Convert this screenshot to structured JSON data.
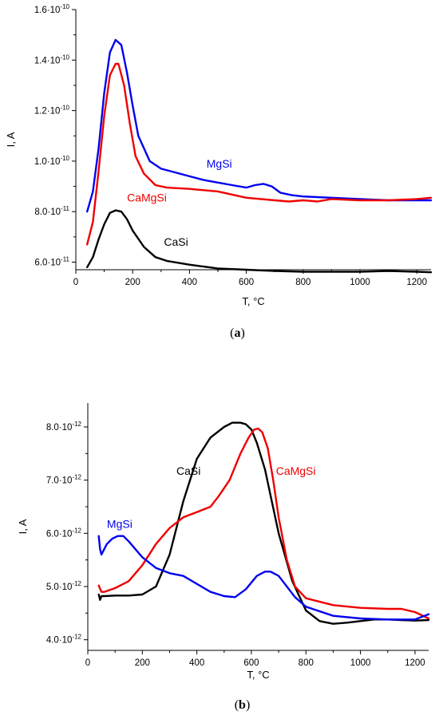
{
  "chart_data": [
    {
      "type": "line",
      "panel_label": "(a)",
      "panel_letter": "a",
      "xlabel": "T, °C",
      "ylabel": "I, A",
      "xlim": [
        0,
        1250
      ],
      "ylim": [
        5.7e-11,
        1.6e-10
      ],
      "x_ticks": [
        0,
        200,
        400,
        600,
        800,
        1000,
        1200
      ],
      "x_tick_labels": [
        "0",
        "200",
        "400",
        "600",
        "800",
        "1000",
        "1200"
      ],
      "y_ticks": [
        6e-11,
        8e-11,
        1e-10,
        1.2e-10,
        1.4e-10,
        1.6e-10
      ],
      "y_tick_labels": [
        "6.0·10-11",
        "8.0·10-11",
        "1.0·10-10",
        "1.2·10-10",
        "1.4·10-10",
        "1.6·10-10"
      ],
      "grid": false,
      "series": [
        {
          "name": "MgSi",
          "color": "#0000ee",
          "x": [
            40,
            60,
            80,
            100,
            120,
            140,
            160,
            180,
            200,
            220,
            260,
            300,
            350,
            400,
            450,
            500,
            550,
            600,
            630,
            660,
            690,
            720,
            760,
            800,
            900,
            1000,
            1100,
            1200,
            1250
          ],
          "y": [
            8e-11,
            8.8e-11,
            1.05e-10,
            1.27e-10,
            1.43e-10,
            1.48e-10,
            1.46e-10,
            1.35e-10,
            1.22e-10,
            1.1e-10,
            1e-10,
            9.7e-11,
            9.55e-11,
            9.4e-11,
            9.25e-11,
            9.15e-11,
            9.05e-11,
            8.95e-11,
            9.05e-11,
            9.1e-11,
            9e-11,
            8.75e-11,
            8.65e-11,
            8.6e-11,
            8.55e-11,
            8.5e-11,
            8.45e-11,
            8.45e-11,
            8.45e-11
          ]
        },
        {
          "name": "CaMgSi",
          "color": "#ee0000",
          "x": [
            40,
            60,
            80,
            100,
            120,
            140,
            150,
            170,
            190,
            210,
            240,
            280,
            320,
            400,
            500,
            600,
            700,
            750,
            800,
            850,
            900,
            1000,
            1100,
            1200,
            1250
          ],
          "y": [
            6.7e-11,
            7.6e-11,
            9.6e-11,
            1.18e-10,
            1.34e-10,
            1.385e-10,
            1.385e-10,
            1.3e-10,
            1.15e-10,
            1.02e-10,
            9.5e-11,
            9.05e-11,
            8.95e-11,
            8.9e-11,
            8.8e-11,
            8.55e-11,
            8.45e-11,
            8.4e-11,
            8.45e-11,
            8.4e-11,
            8.5e-11,
            8.45e-11,
            8.45e-11,
            8.5e-11,
            8.55e-11
          ]
        },
        {
          "name": "CaSi",
          "color": "#000000",
          "x": [
            40,
            60,
            80,
            100,
            120,
            140,
            160,
            180,
            200,
            240,
            280,
            320,
            400,
            500,
            600,
            700,
            800,
            900,
            1000,
            1100,
            1200,
            1250
          ],
          "y": [
            5.8e-11,
            6.2e-11,
            6.9e-11,
            7.5e-11,
            7.95e-11,
            8.05e-11,
            8e-11,
            7.7e-11,
            7.25e-11,
            6.6e-11,
            6.2e-11,
            6.05e-11,
            5.9e-11,
            5.75e-11,
            5.7e-11,
            5.65e-11,
            5.62e-11,
            5.62e-11,
            5.62e-11,
            5.65e-11,
            5.62e-11,
            5.6e-11
          ]
        }
      ],
      "annotations": [
        {
          "text": "MgSi",
          "series": "MgSi",
          "x": 460,
          "y": 9.75e-11
        },
        {
          "text": "CaMgSi",
          "series": "CaMgSi",
          "x": 180,
          "y": 8.4e-11
        },
        {
          "text": "CaSi",
          "series": "CaSi",
          "x": 310,
          "y": 6.65e-11
        }
      ]
    },
    {
      "type": "line",
      "panel_label": "(b)",
      "panel_letter": "b",
      "xlabel": "T, °C",
      "ylabel": "I, A",
      "xlim": [
        0,
        1250
      ],
      "ylim": [
        3.8e-12,
        8.45e-12
      ],
      "x_ticks": [
        0,
        200,
        400,
        600,
        800,
        1000,
        1200
      ],
      "x_tick_labels": [
        "0",
        "200",
        "400",
        "600",
        "800",
        "1000",
        "1200"
      ],
      "y_ticks": [
        4e-12,
        5e-12,
        6e-12,
        7e-12,
        8e-12
      ],
      "y_tick_labels": [
        "4.0·10-12",
        "5.0·10-12",
        "6.0·10-12",
        "7.0·10-12",
        "8.0·10-12"
      ],
      "grid": false,
      "series": [
        {
          "name": "CaSi",
          "color": "#000000",
          "x": [
            40,
            45,
            50,
            60,
            100,
            150,
            200,
            250,
            300,
            350,
            400,
            450,
            500,
            530,
            560,
            580,
            600,
            620,
            650,
            700,
            750,
            800,
            850,
            900,
            950,
            1000,
            1050,
            1100,
            1150,
            1200,
            1250
          ],
          "y": [
            4.85e-12,
            4.75e-12,
            4.82e-12,
            4.82e-12,
            4.83e-12,
            4.83e-12,
            4.85e-12,
            5e-12,
            5.6e-12,
            6.6e-12,
            7.4e-12,
            7.8e-12,
            8e-12,
            8.08e-12,
            8.08e-12,
            8.05e-12,
            7.95e-12,
            7.7e-12,
            7.2e-12,
            6e-12,
            5.1e-12,
            4.55e-12,
            4.35e-12,
            4.3e-12,
            4.32e-12,
            4.35e-12,
            4.38e-12,
            4.38e-12,
            4.37e-12,
            4.36e-12,
            4.37e-12
          ]
        },
        {
          "name": "CaMgSi",
          "color": "#ee0000",
          "x": [
            40,
            50,
            60,
            100,
            150,
            200,
            250,
            300,
            350,
            400,
            450,
            480,
            520,
            560,
            590,
            610,
            625,
            640,
            660,
            680,
            700,
            730,
            760,
            800,
            900,
            1000,
            1100,
            1150,
            1200,
            1250
          ],
          "y": [
            5.02e-12,
            4.9e-12,
            4.9e-12,
            4.97e-12,
            5.1e-12,
            5.4e-12,
            5.8e-12,
            6.1e-12,
            6.3e-12,
            6.4e-12,
            6.5e-12,
            6.7e-12,
            7e-12,
            7.5e-12,
            7.8e-12,
            7.95e-12,
            7.97e-12,
            7.9e-12,
            7.6e-12,
            7e-12,
            6.3e-12,
            5.5e-12,
            5e-12,
            4.78e-12,
            4.65e-12,
            4.6e-12,
            4.58e-12,
            4.58e-12,
            4.52e-12,
            4.4e-12
          ]
        },
        {
          "name": "MgSi",
          "color": "#0000ee",
          "x": [
            40,
            45,
            50,
            60,
            70,
            90,
            110,
            130,
            150,
            200,
            250,
            300,
            350,
            400,
            450,
            500,
            540,
            580,
            620,
            650,
            670,
            700,
            730,
            760,
            800,
            900,
            1000,
            1100,
            1200,
            1250
          ],
          "y": [
            5.95e-12,
            5.7e-12,
            5.6e-12,
            5.7e-12,
            5.8e-12,
            5.9e-12,
            5.95e-12,
            5.95e-12,
            5.85e-12,
            5.55e-12,
            5.35e-12,
            5.25e-12,
            5.2e-12,
            5.05e-12,
            4.9e-12,
            4.82e-12,
            4.8e-12,
            4.95e-12,
            5.2e-12,
            5.28e-12,
            5.28e-12,
            5.2e-12,
            5e-12,
            4.8e-12,
            4.62e-12,
            4.45e-12,
            4.4e-12,
            4.38e-12,
            4.38e-12,
            4.48e-12
          ]
        }
      ],
      "annotations": [
        {
          "text": "CaSi",
          "series": "CaSi",
          "x": 325,
          "y": 7.1e-12
        },
        {
          "text": "CaMgSi",
          "series": "CaMgSi",
          "x": 690,
          "y": 7.1e-12
        },
        {
          "text": "MgSi",
          "series": "MgSi",
          "x": 70,
          "y": 6.1e-12
        }
      ]
    }
  ]
}
